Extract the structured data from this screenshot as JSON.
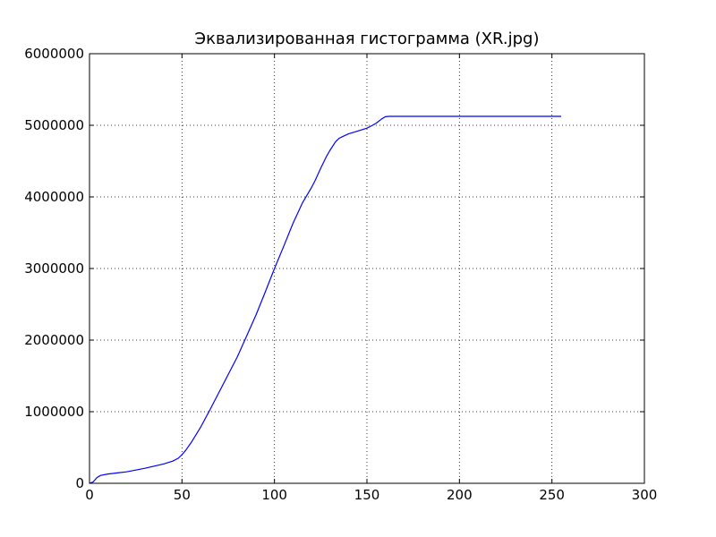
{
  "chart_data": {
    "type": "line",
    "title": "Эквализированная гистограмма (XR.jpg)",
    "xlabel": "",
    "ylabel": "",
    "xlim": [
      0,
      300
    ],
    "ylim": [
      0,
      6000000
    ],
    "x_ticks": [
      0,
      50,
      100,
      150,
      200,
      250,
      300
    ],
    "y_ticks": [
      0,
      1000000,
      2000000,
      3000000,
      4000000,
      5000000,
      6000000
    ],
    "x_tick_labels": [
      "0",
      "50",
      "100",
      "150",
      "200",
      "250",
      "300"
    ],
    "y_tick_labels": [
      "0",
      "1000000",
      "2000000",
      "3000000",
      "4000000",
      "5000000",
      "6000000"
    ],
    "grid": true,
    "legend": "none",
    "series": [
      {
        "color": "#0000ff",
        "x": [
          0,
          2,
          4,
          6,
          10,
          15,
          20,
          25,
          30,
          35,
          40,
          45,
          48,
          50,
          52,
          55,
          60,
          65,
          70,
          75,
          80,
          85,
          90,
          95,
          100,
          105,
          110,
          115,
          120,
          122,
          125,
          128,
          130,
          133,
          135,
          140,
          145,
          150,
          153,
          155,
          158,
          160,
          162,
          165,
          170,
          180,
          200,
          220,
          240,
          255
        ],
        "y": [
          0,
          20000,
          80000,
          110000,
          130000,
          145000,
          160000,
          185000,
          210000,
          240000,
          270000,
          310000,
          350000,
          400000,
          460000,
          570000,
          780000,
          1020000,
          1270000,
          1520000,
          1770000,
          2060000,
          2350000,
          2670000,
          3000000,
          3310000,
          3630000,
          3910000,
          4130000,
          4230000,
          4400000,
          4560000,
          4650000,
          4770000,
          4820000,
          4880000,
          4920000,
          4960000,
          5000000,
          5030000,
          5090000,
          5120000,
          5125000,
          5125000,
          5125000,
          5125000,
          5125000,
          5125000,
          5125000,
          5125000
        ]
      }
    ]
  }
}
